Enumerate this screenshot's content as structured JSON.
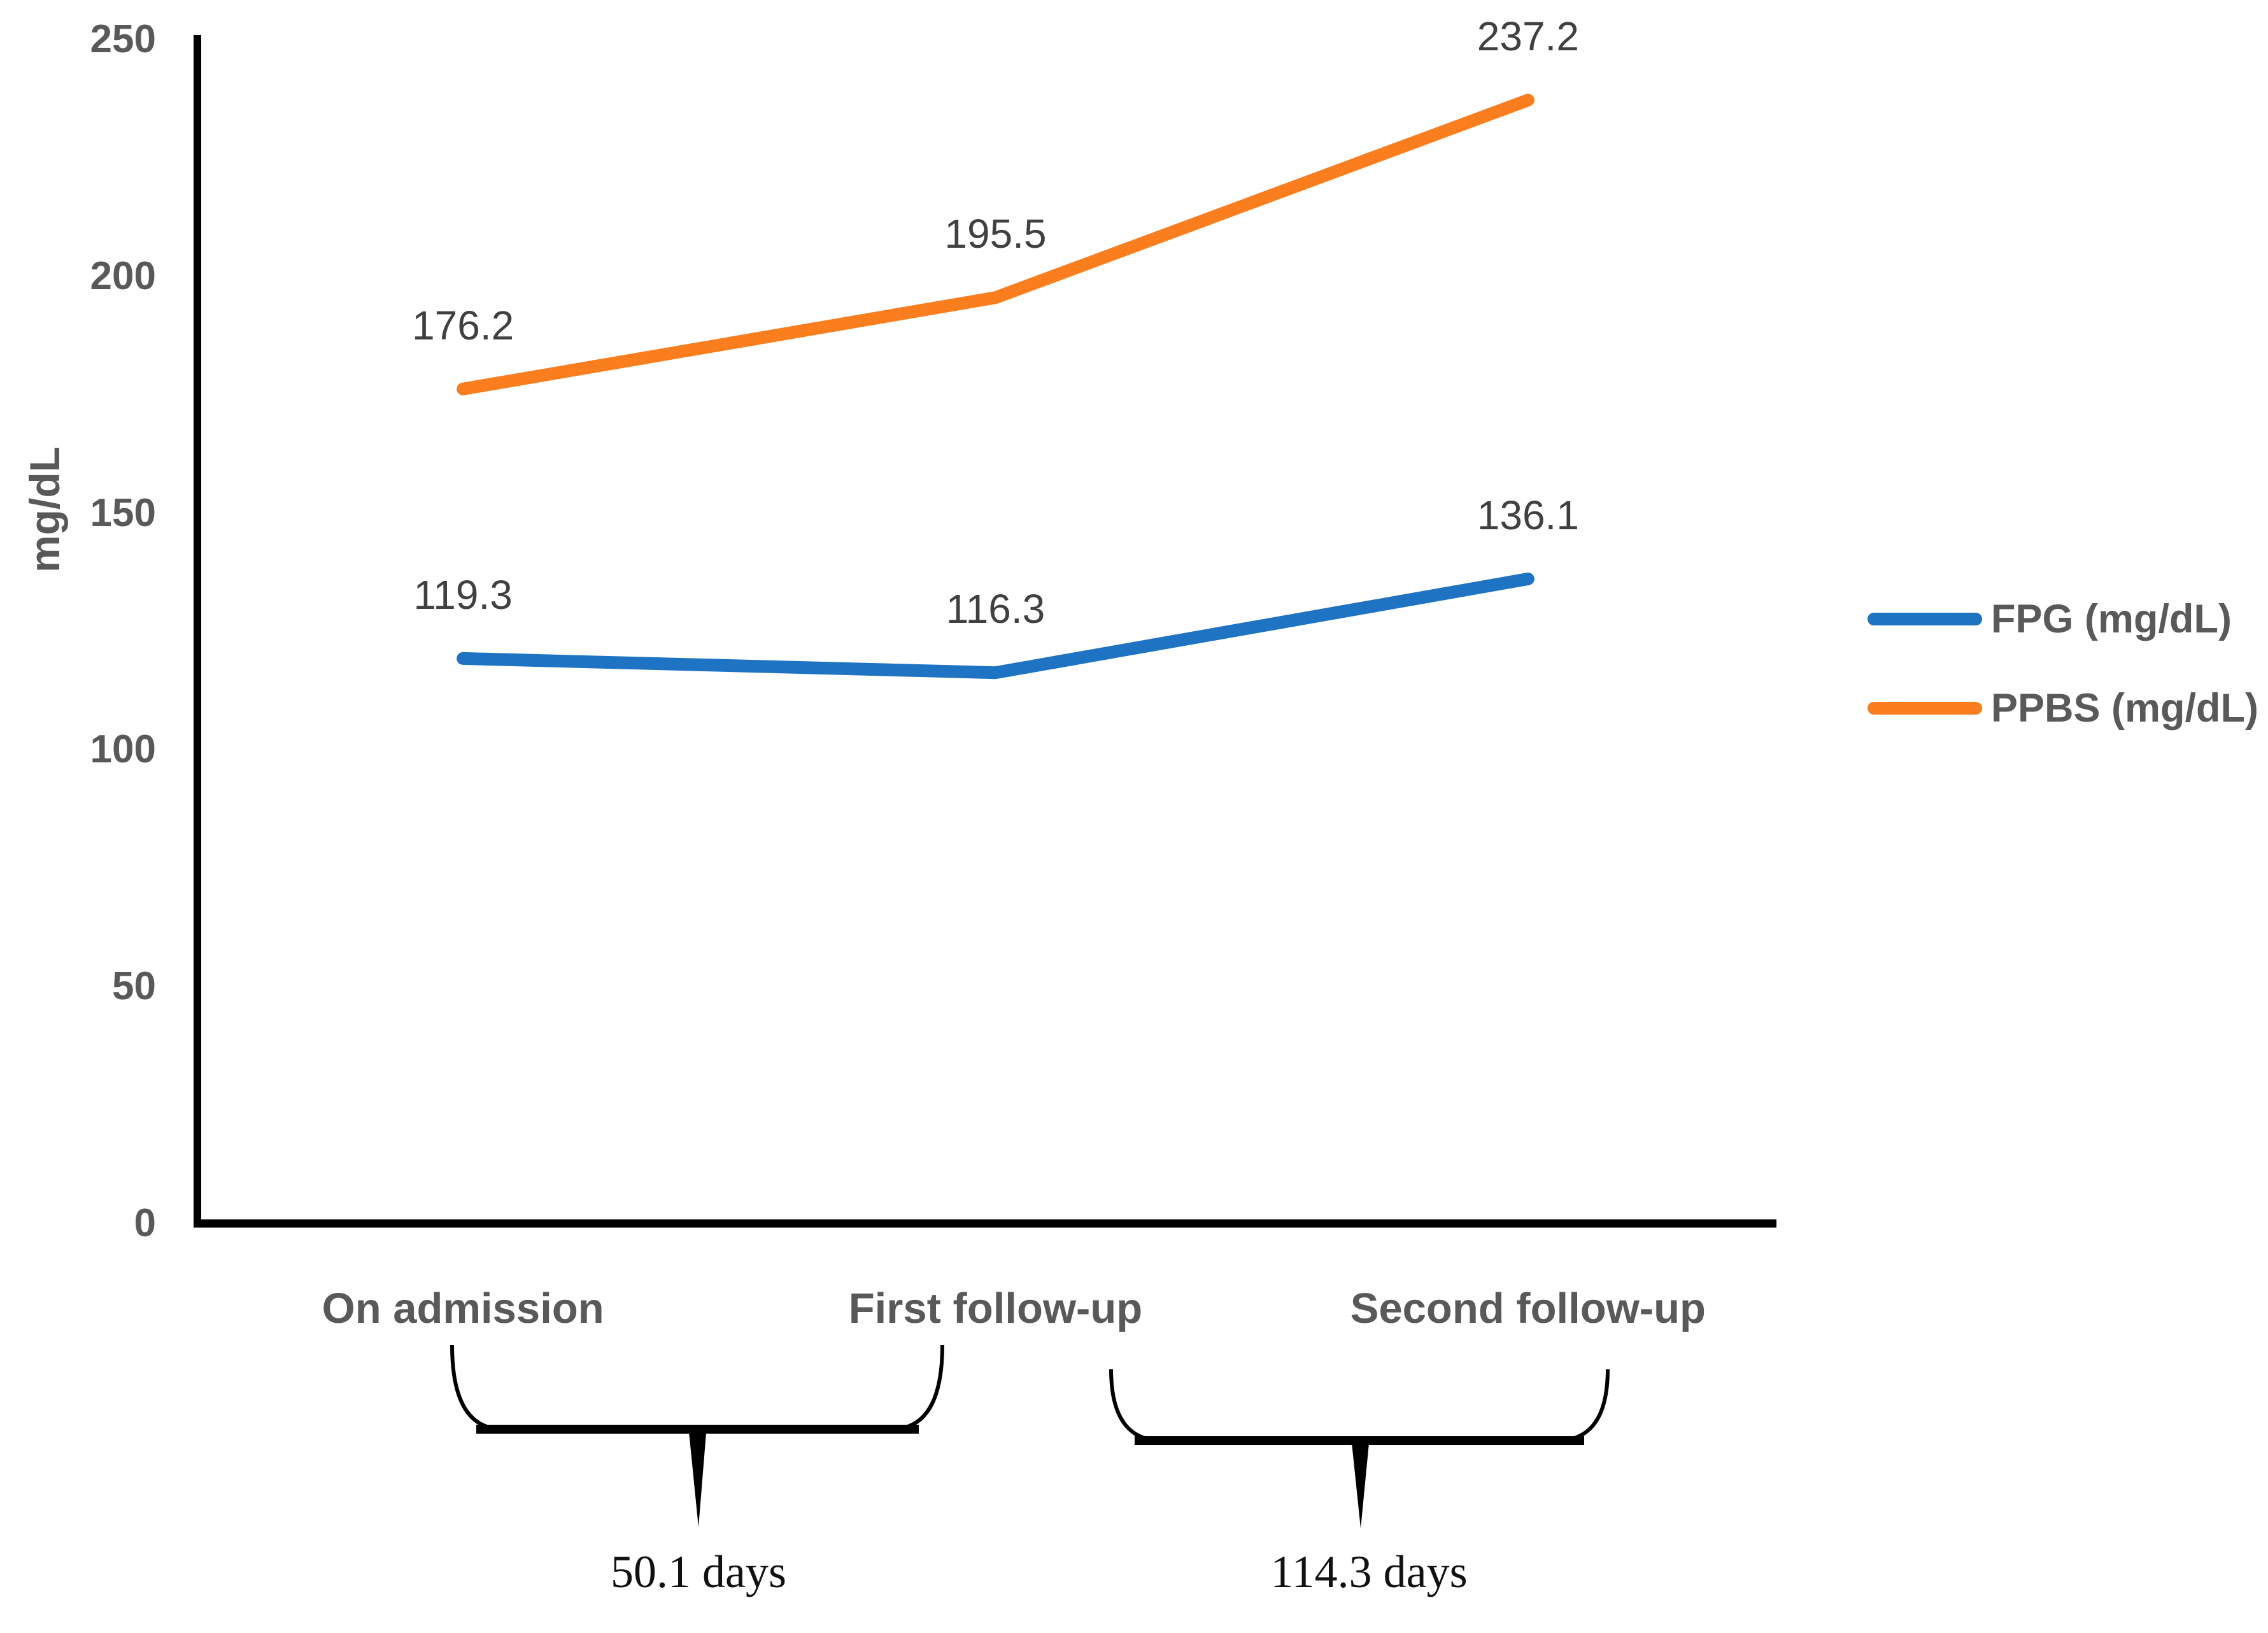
{
  "chart_data": {
    "type": "line",
    "title": "",
    "xlabel": "",
    "ylabel": "mg/dL",
    "categories": [
      "On admission",
      "First follow-up",
      "Second follow-up"
    ],
    "series": [
      {
        "name": "FPG (mg/dL)",
        "color": "#1E73C3",
        "values": [
          119.3,
          116.3,
          136.1
        ]
      },
      {
        "name": "PPBS (mg/dL)",
        "color": "#FA7E1E",
        "values": [
          176.2,
          195.5,
          237.2
        ]
      }
    ],
    "data_labels": {
      "FPG": [
        "119.3",
        "116.3",
        "136.1"
      ],
      "PPBS": [
        "176.2",
        "195.5",
        "237.2"
      ]
    },
    "y_ticks": [
      250,
      200,
      150,
      100,
      50,
      0
    ],
    "ylim": [
      0,
      250
    ],
    "grid": false,
    "legend_position": "right",
    "intervals": [
      {
        "label": "50.1 days",
        "from": "On admission",
        "to": "First follow-up"
      },
      {
        "label": "114.3 days",
        "from": "First follow-up",
        "to": "Second follow-up"
      }
    ]
  },
  "colors": {
    "axis": "#000000",
    "tick_text": "#595959",
    "data_label_text": "#404040",
    "interval_text": "#111111",
    "fpg_blue": "#1E73C3",
    "ppbs_orange": "#FA7E1E"
  }
}
